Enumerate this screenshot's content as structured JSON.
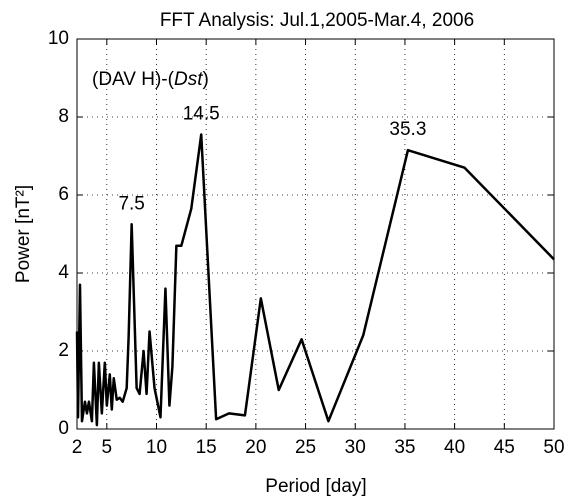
{
  "chart_data": {
    "type": "line",
    "title": "FFT  Analysis: Jul.1,2005-Mar.4, 2006",
    "xlabel": "Period [day]",
    "ylabel": "Power [nT²]",
    "inset": {
      "prefix": "(DAV H)-(",
      "italic": "Dst",
      "suffix": ")"
    },
    "annotations": [
      {
        "label": "7.5",
        "x": 7.5
      },
      {
        "label": "14.5",
        "x": 14.5
      },
      {
        "label": "35.3",
        "x": 35.3
      }
    ],
    "xlim": [
      2,
      50
    ],
    "xticks": [
      2,
      5,
      10,
      15,
      20,
      25,
      30,
      35,
      40,
      45,
      50
    ],
    "ylim": [
      0,
      10
    ],
    "yticks": [
      0,
      2,
      4,
      6,
      8,
      10
    ],
    "grid": true,
    "series": [
      {
        "name": "(DAV H)-(Dst)",
        "color": "#000000",
        "x": [
          2.0,
          2.1,
          2.3,
          2.5,
          2.8,
          3.0,
          3.2,
          3.5,
          3.7,
          4.0,
          4.2,
          4.5,
          4.8,
          5.0,
          5.3,
          5.5,
          5.7,
          6.0,
          6.3,
          6.6,
          7.0,
          7.2,
          7.5,
          8.0,
          8.3,
          8.7,
          9.0,
          9.3,
          9.8,
          10.4,
          10.9,
          11.3,
          11.6,
          12.0,
          12.5,
          13.5,
          14.5,
          16.0,
          17.3,
          18.9,
          20.5,
          22.3,
          24.6,
          27.3,
          30.8,
          35.3,
          41.0,
          50.0
        ],
        "values": [
          2.5,
          0.3,
          3.7,
          0.2,
          0.7,
          0.4,
          0.7,
          0.2,
          1.7,
          0.1,
          1.7,
          0.4,
          1.7,
          0.6,
          1.4,
          0.5,
          1.3,
          0.75,
          0.8,
          0.7,
          1.05,
          2.4,
          5.25,
          1.05,
          0.9,
          2.0,
          0.9,
          2.5,
          1.05,
          0.3,
          3.6,
          0.6,
          1.6,
          4.7,
          4.7,
          5.65,
          7.55,
          0.25,
          0.4,
          0.35,
          3.35,
          1.0,
          2.3,
          0.2,
          2.4,
          7.15,
          6.7,
          4.35
        ]
      }
    ]
  }
}
